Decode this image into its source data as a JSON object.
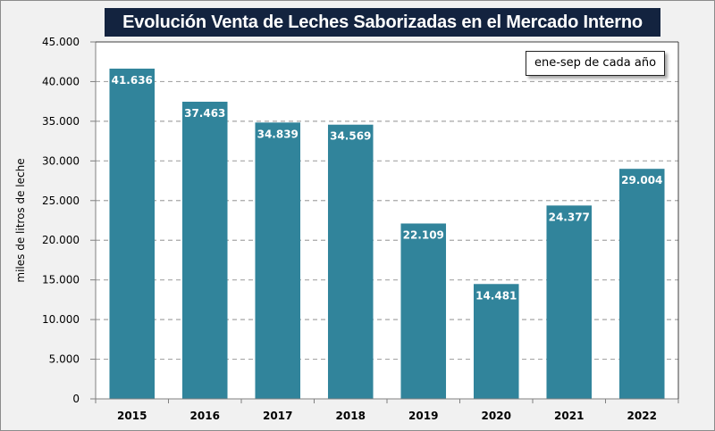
{
  "chart_data": {
    "type": "bar",
    "title": "Evolución Venta de Leches Saborizadas en el Mercado Interno",
    "annotation": "ene-sep de cada año",
    "xlabel": "",
    "ylabel": "miles de litros de leche",
    "categories": [
      "2015",
      "2016",
      "2017",
      "2018",
      "2019",
      "2020",
      "2021",
      "2022"
    ],
    "values": [
      41636,
      37463,
      34839,
      34569,
      22109,
      14481,
      24377,
      29004
    ],
    "value_labels": [
      "41.636",
      "37.463",
      "34.839",
      "34.569",
      "22.109",
      "14.481",
      "24.377",
      "29.004"
    ],
    "ylim": [
      0,
      45000
    ],
    "yticks": [
      0,
      5000,
      10000,
      15000,
      20000,
      25000,
      30000,
      35000,
      40000,
      45000
    ],
    "ytick_labels": [
      "0",
      "5.000",
      "10.000",
      "15.000",
      "20.000",
      "25.000",
      "30.000",
      "35.000",
      "40.000",
      "45.000"
    ],
    "grid": true,
    "legend": "none",
    "colors": {
      "bar": "#31849b",
      "title_bg": "#13233f",
      "grid": "#a6a6a6"
    }
  }
}
